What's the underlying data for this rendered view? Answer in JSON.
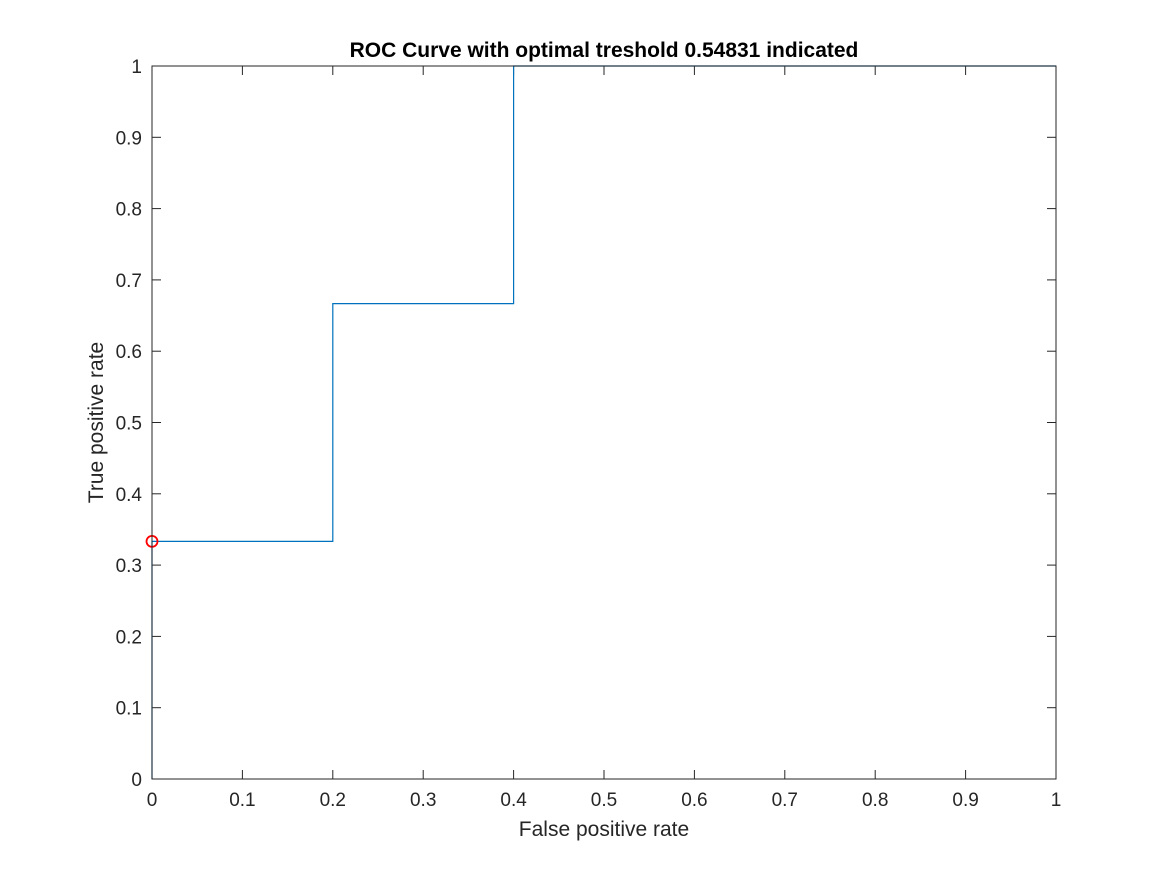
{
  "chart_data": {
    "type": "line",
    "title": "ROC Curve with optimal treshold 0.54831 indicated",
    "xlabel": "False positive rate",
    "ylabel": "True positive rate",
    "xlim": [
      0,
      1
    ],
    "ylim": [
      0,
      1
    ],
    "xticks": [
      0,
      0.1,
      0.2,
      0.3,
      0.4,
      0.5,
      0.6,
      0.7,
      0.8,
      0.9,
      1
    ],
    "yticks": [
      0,
      0.1,
      0.2,
      0.3,
      0.4,
      0.5,
      0.6,
      0.7,
      0.8,
      0.9,
      1
    ],
    "xtick_labels": [
      "0",
      "0.1",
      "0.2",
      "0.3",
      "0.4",
      "0.5",
      "0.6",
      "0.7",
      "0.8",
      "0.9",
      "1"
    ],
    "ytick_labels": [
      "0",
      "0.1",
      "0.2",
      "0.3",
      "0.4",
      "0.5",
      "0.6",
      "0.7",
      "0.8",
      "0.9",
      "1"
    ],
    "grid": false,
    "series": [
      {
        "x": [
          0,
          0,
          0.2,
          0.2,
          0.4,
          0.4,
          1
        ],
        "y": [
          0,
          0.3333,
          0.3333,
          0.6667,
          0.6667,
          1,
          1
        ],
        "color": "#0072bd"
      }
    ],
    "marker": {
      "x": 0,
      "y": 0.3333,
      "shape": "circle",
      "color": "#ff0000"
    }
  }
}
